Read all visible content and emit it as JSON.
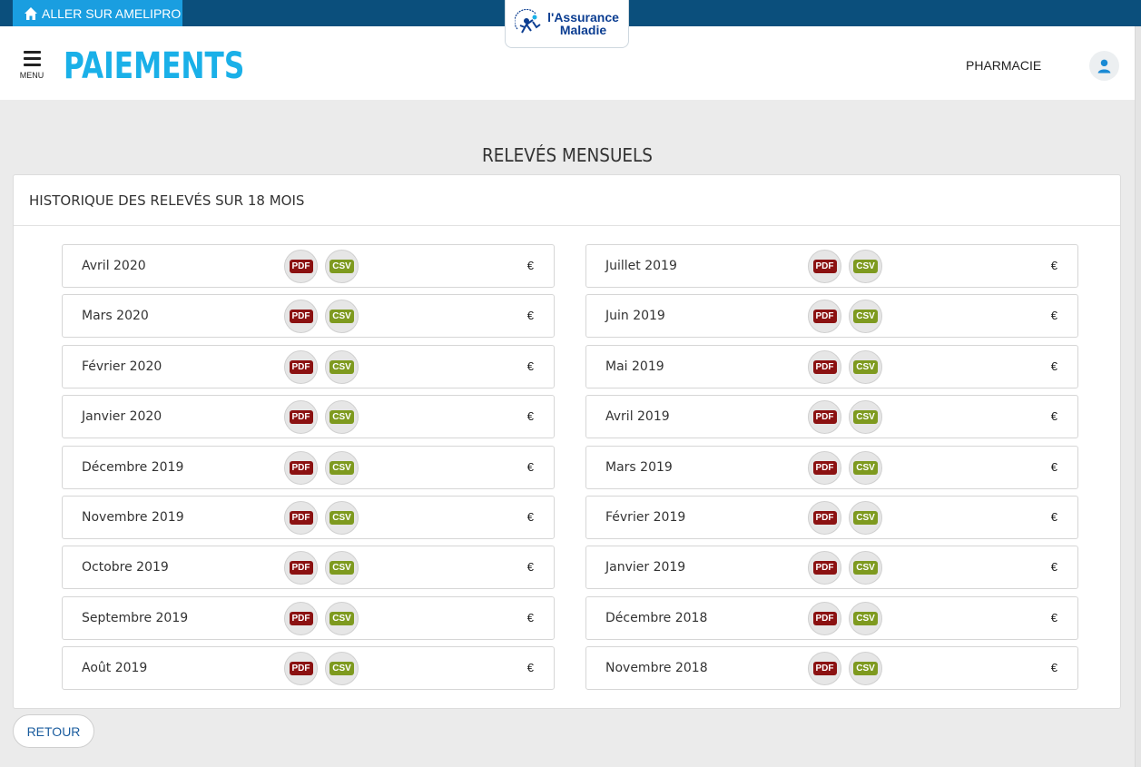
{
  "topbar": {
    "amelipro_label": "ALLER SUR AMELIPRO"
  },
  "logo": {
    "line1": "l'Assurance",
    "line2": "Maladie"
  },
  "header": {
    "menu_label": "MENU",
    "app_title": "PAIEMENTS",
    "user_role": "PHARMACIE"
  },
  "page": {
    "title": "RELEVÉS MENSUELS"
  },
  "panel": {
    "heading": "HISTORIQUE DES RELEVÉS SUR 18 MOIS",
    "pdf_label": "PDF",
    "csv_label": "CSV",
    "currency": "€",
    "left": [
      {
        "month": "Avril 2020"
      },
      {
        "month": "Mars 2020"
      },
      {
        "month": "Février 2020"
      },
      {
        "month": "Janvier 2020"
      },
      {
        "month": "Décembre 2019"
      },
      {
        "month": "Novembre 2019"
      },
      {
        "month": "Octobre 2019"
      },
      {
        "month": "Septembre 2019"
      },
      {
        "month": "Août 2019"
      }
    ],
    "right": [
      {
        "month": "Juillet 2019"
      },
      {
        "month": "Juin 2019"
      },
      {
        "month": "Mai 2019"
      },
      {
        "month": "Avril 2019"
      },
      {
        "month": "Mars 2019"
      },
      {
        "month": "Février 2019"
      },
      {
        "month": "Janvier 2019"
      },
      {
        "month": "Décembre 2018"
      },
      {
        "month": "Novembre 2018"
      }
    ]
  },
  "footer": {
    "back_label": "RETOUR"
  },
  "colors": {
    "topbar": "#0b4f7c",
    "accent": "#1ab0e8",
    "pdf": "#8b1111",
    "csv": "#7e9a1f"
  }
}
